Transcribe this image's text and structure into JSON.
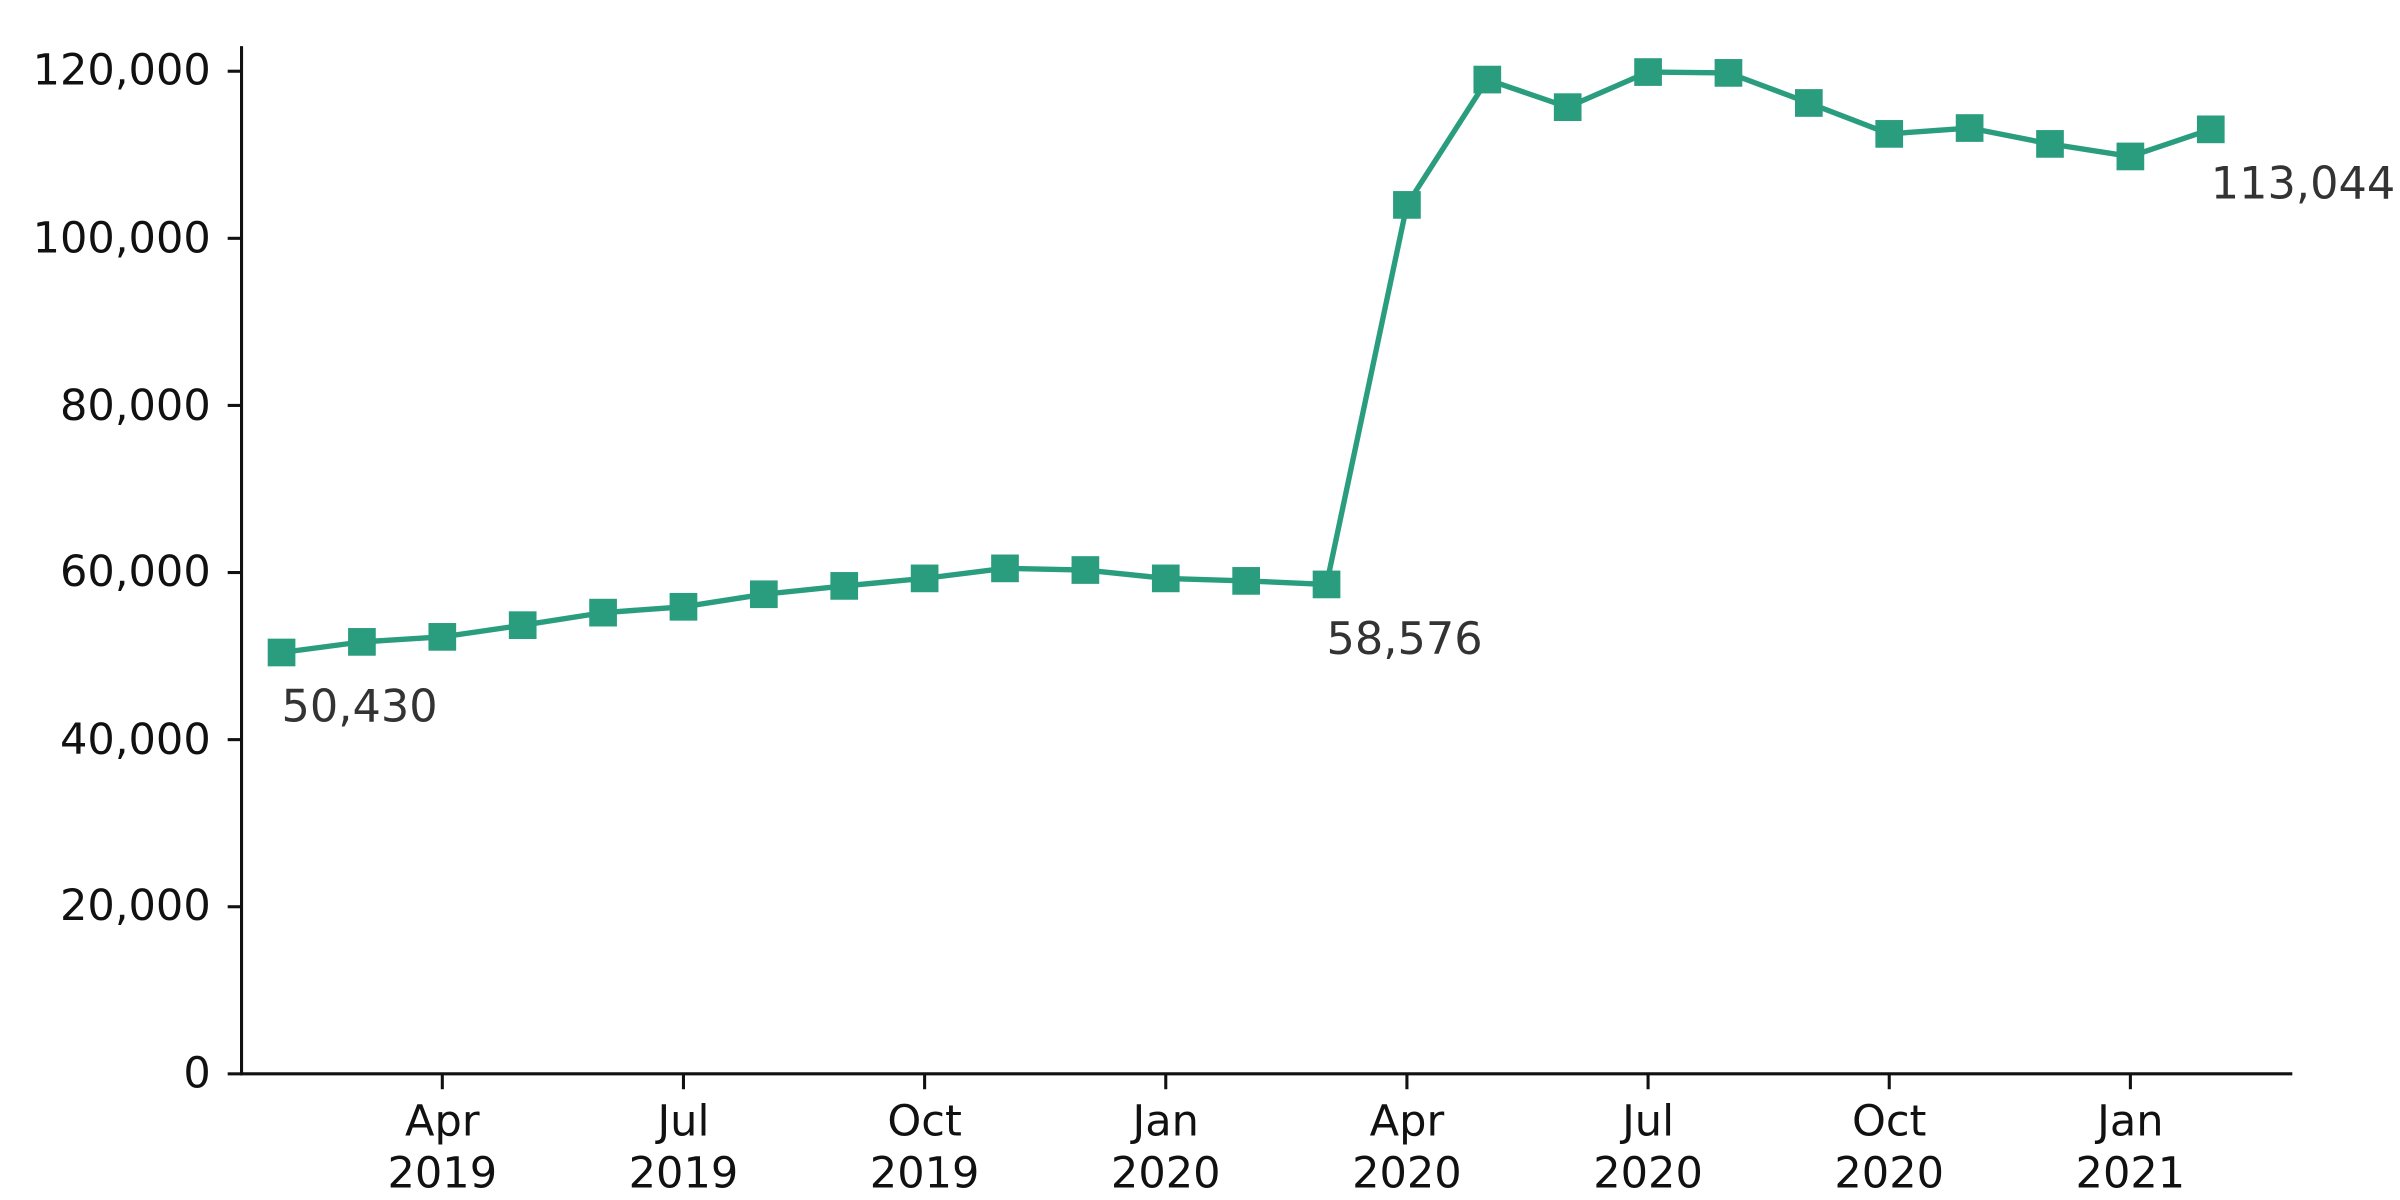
{
  "chart_data": {
    "type": "line",
    "categories": [
      null,
      null,
      "Apr 2019",
      null,
      null,
      "Jul 2019",
      null,
      null,
      "Oct 2019",
      null,
      null,
      "Jan 2020",
      null,
      null,
      "Apr 2020",
      null,
      null,
      "Jul 2020",
      null,
      null,
      "Oct 2020",
      null,
      null,
      "Jan 2021",
      null
    ],
    "values": [
      50430,
      51700,
      52300,
      53700,
      55200,
      55900,
      57400,
      58400,
      59300,
      60500,
      60300,
      59300,
      59000,
      58576,
      104000,
      119000,
      115700,
      119900,
      119800,
      116200,
      112500,
      113200,
      111300,
      109800,
      113044
    ],
    "value_labels": [
      "50,430",
      null,
      null,
      null,
      null,
      null,
      null,
      null,
      null,
      null,
      null,
      null,
      null,
      "58,576",
      null,
      null,
      null,
      null,
      null,
      null,
      null,
      null,
      null,
      null,
      "113,044"
    ],
    "color": "#2a9d7f",
    "ylim": [
      0,
      123000
    ],
    "yticks": [
      0,
      {
        "value": 20000,
        "label": "20,000"
      },
      {
        "value": 40000,
        "label": "40,000"
      },
      {
        "value": 60000,
        "label": "60,000"
      },
      {
        "value": 80000,
        "label": "80,000"
      },
      {
        "value": 100000,
        "label": "100,000"
      },
      {
        "value": 120000,
        "label": "120,000"
      }
    ],
    "grid": false
  }
}
